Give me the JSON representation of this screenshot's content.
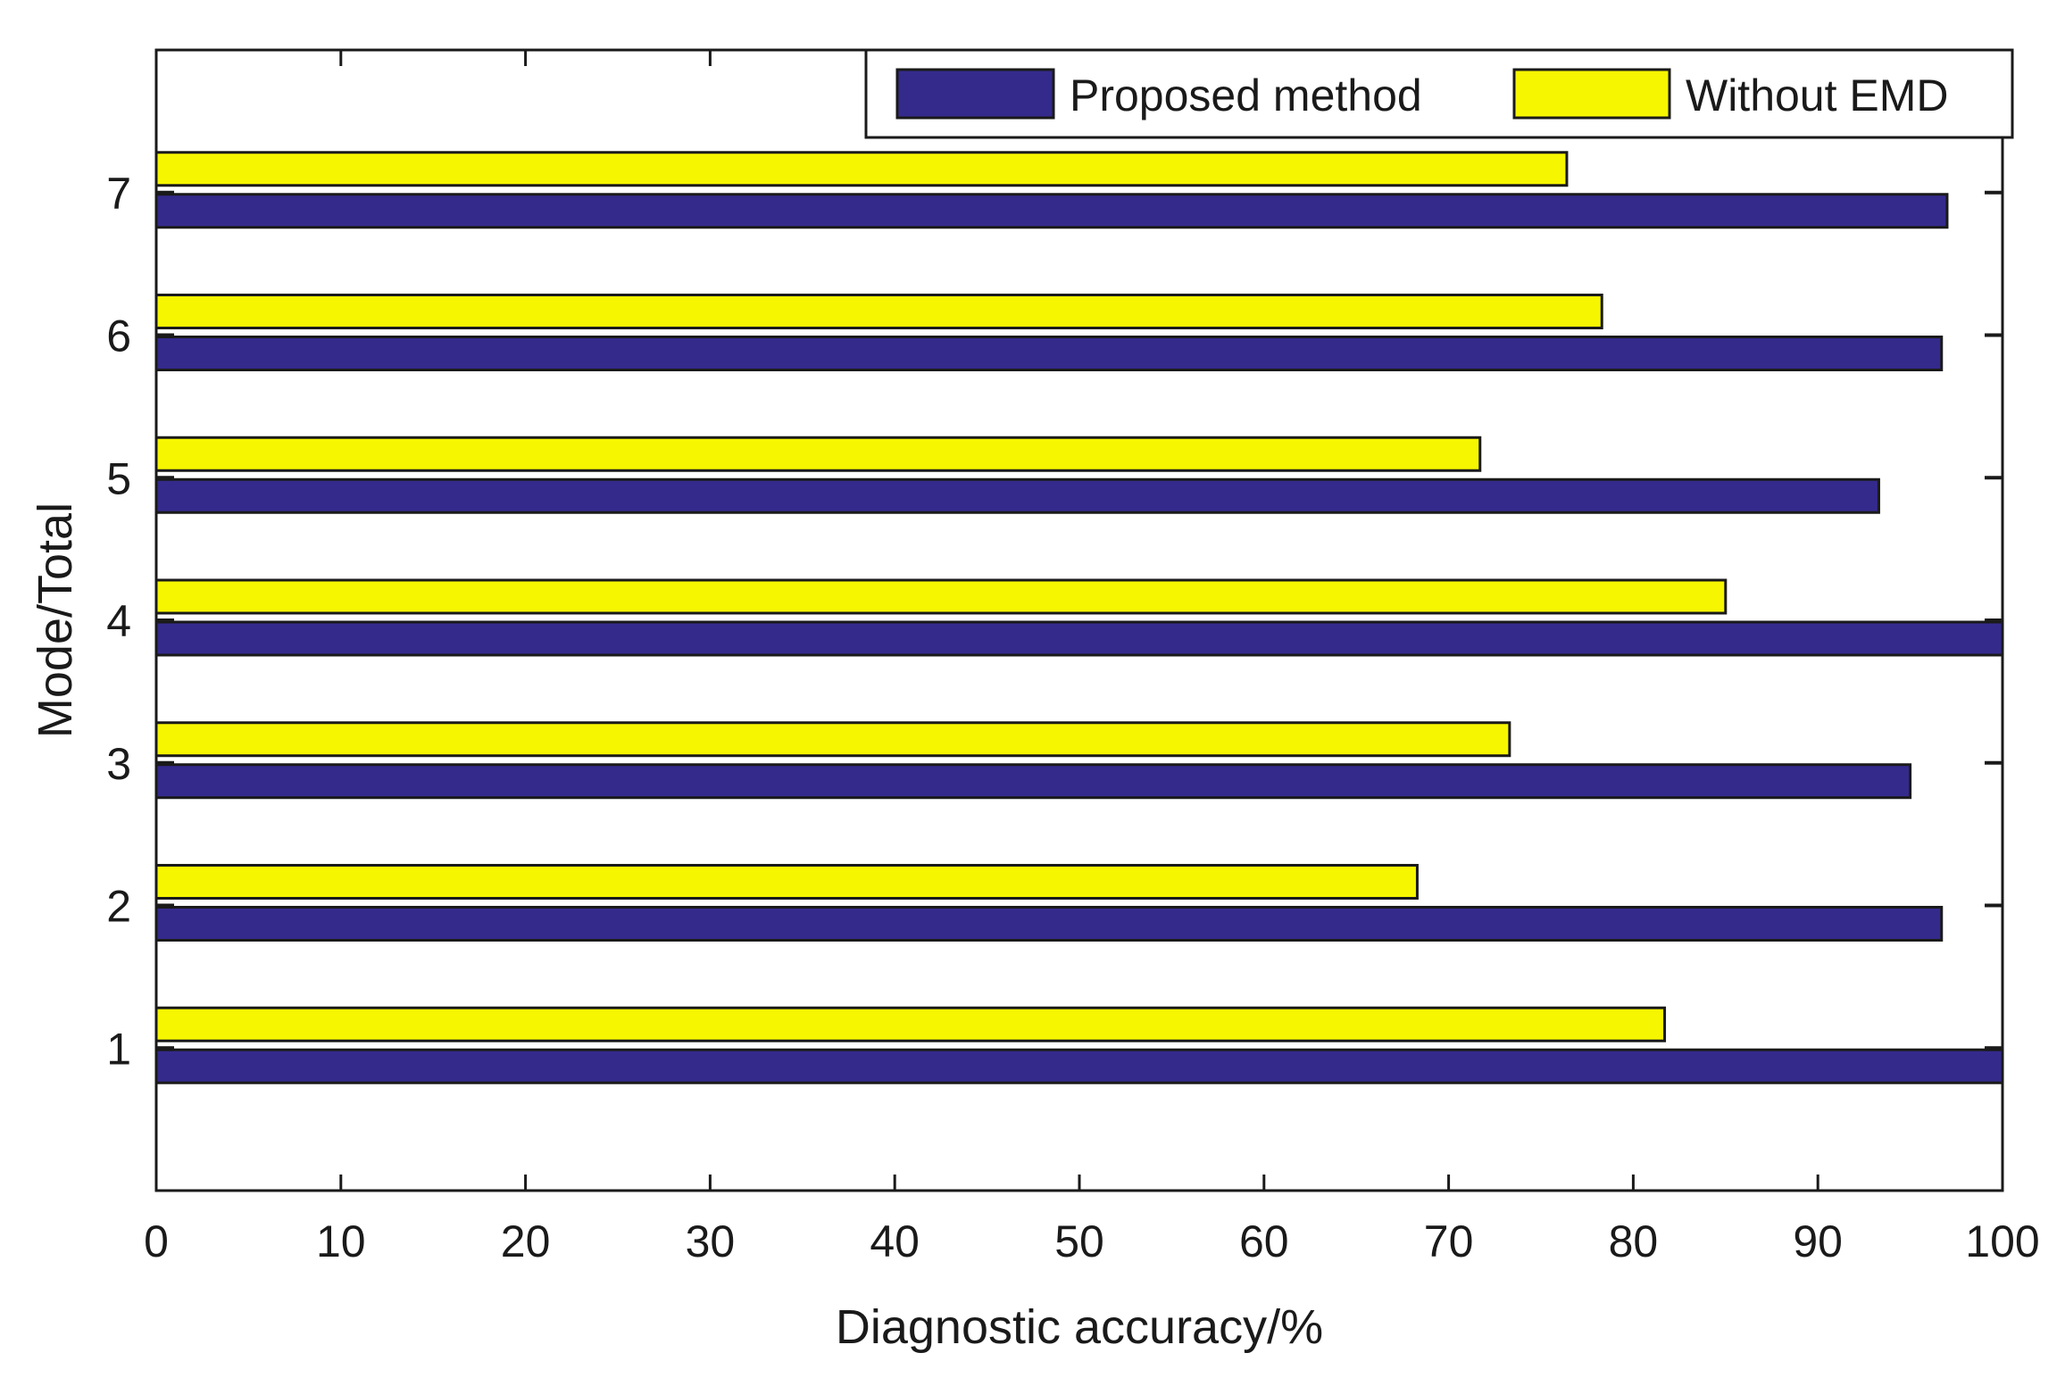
{
  "chart_data": {
    "type": "bar",
    "orientation": "horizontal",
    "title": "",
    "xlabel": "Diagnostic accuracy/%",
    "ylabel": "Mode/Total",
    "categories": [
      "1",
      "2",
      "3",
      "4",
      "5",
      "6",
      "7"
    ],
    "xlim": [
      0,
      100
    ],
    "xticks": [
      "0",
      "10",
      "20",
      "30",
      "40",
      "50",
      "60",
      "70",
      "80",
      "90",
      "100"
    ],
    "series": [
      {
        "name": "Proposed method",
        "color": "#342a8c",
        "values": [
          100,
          96.7,
          95.0,
          100,
          93.3,
          96.7,
          97.0
        ]
      },
      {
        "name": "Without EMD",
        "color": "#f6f600",
        "values": [
          81.7,
          68.3,
          73.3,
          85.0,
          71.7,
          78.3,
          76.4
        ]
      }
    ],
    "grid": false,
    "legend": "top-right"
  }
}
